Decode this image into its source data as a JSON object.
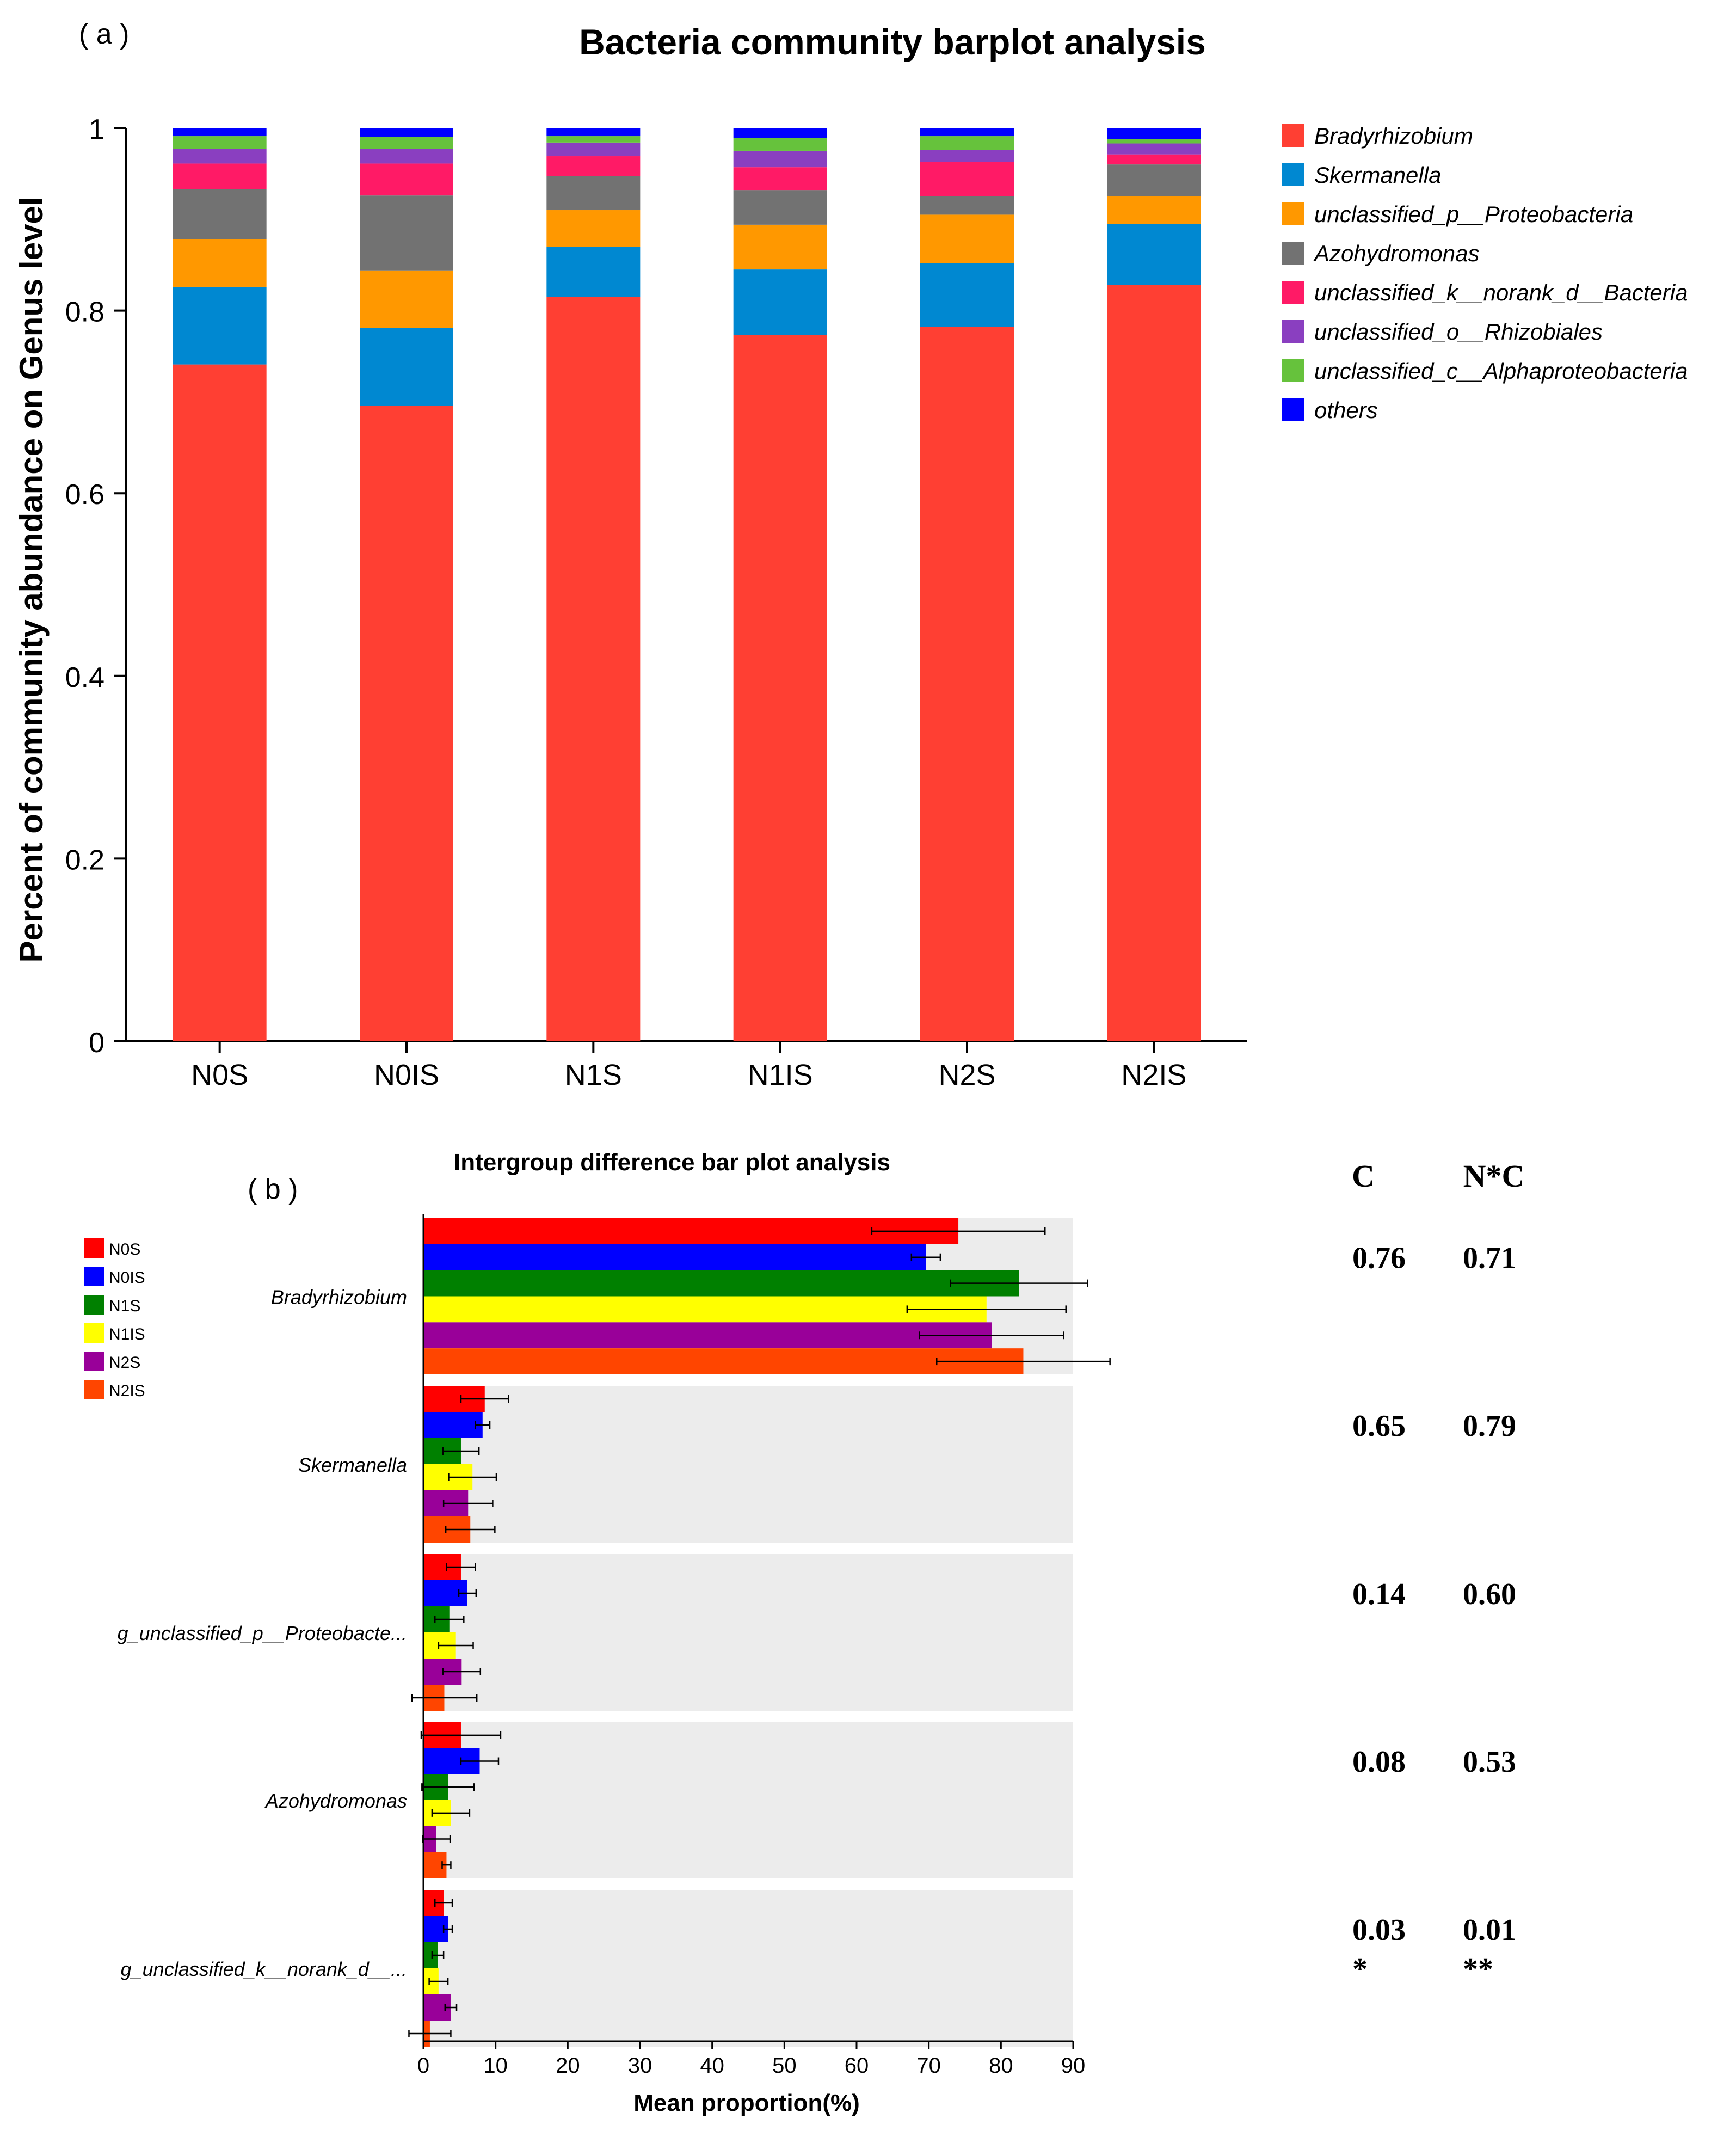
{
  "chart_data": [
    {
      "panel_label": "( a )",
      "type": "bar",
      "stacked": true,
      "title": "Bacteria community barplot analysis",
      "xlabel": "",
      "ylabel": "Percent of community abundance on Genus level",
      "ylim": [
        0,
        1
      ],
      "yticks": [
        "0",
        "0.2",
        "0.4",
        "0.6",
        "0.8",
        "1"
      ],
      "yticks_values": [
        0,
        0.2,
        0.4,
        0.6,
        0.8,
        1
      ],
      "legend_position": "right",
      "categories": [
        "N0S",
        "N0IS",
        "N1S",
        "N1IS",
        "N2S",
        "N2IS"
      ],
      "series": [
        {
          "name": "Bradyrhizobium",
          "color": "#ff3f33",
          "values": [
            0.741,
            0.696,
            0.815,
            0.773,
            0.782,
            0.828
          ]
        },
        {
          "name": "Skermanella",
          "color": "#0088d1",
          "values": [
            0.085,
            0.085,
            0.055,
            0.072,
            0.07,
            0.067
          ]
        },
        {
          "name": "unclassified_p__Proteobacteria",
          "color": "#ff9800",
          "values": [
            0.052,
            0.063,
            0.04,
            0.049,
            0.053,
            0.03
          ]
        },
        {
          "name": "Azohydromonas",
          "color": "#727272",
          "values": [
            0.055,
            0.082,
            0.037,
            0.038,
            0.02,
            0.035
          ]
        },
        {
          "name": "unclassified_k__norank_d__Bacteria",
          "color": "#ff1a66",
          "values": [
            0.028,
            0.035,
            0.022,
            0.025,
            0.038,
            0.011
          ]
        },
        {
          "name": "unclassified_o__Rhizobiales",
          "color": "#8a3fc0",
          "values": [
            0.016,
            0.016,
            0.015,
            0.018,
            0.013,
            0.012
          ]
        },
        {
          "name": "unclassified_c__Alphaproteobacteria",
          "color": "#66c23c",
          "values": [
            0.014,
            0.013,
            0.007,
            0.014,
            0.015,
            0.005
          ]
        },
        {
          "name": "others",
          "color": "#0000ff",
          "values": [
            0.009,
            0.01,
            0.009,
            0.011,
            0.009,
            0.012
          ]
        }
      ]
    },
    {
      "panel_label": "( b )",
      "type": "bar",
      "orientation": "horizontal",
      "title": "Intergroup difference bar plot analysis",
      "xlabel": "Mean proportion(%)",
      "ylabel": "",
      "xlim": [
        0,
        90
      ],
      "xticks": [
        "0",
        "10",
        "20",
        "30",
        "40",
        "50",
        "60",
        "70",
        "80",
        "90"
      ],
      "xticks_values": [
        0,
        10,
        20,
        30,
        40,
        50,
        60,
        70,
        80,
        90
      ],
      "legend_position": "top-left",
      "groups": [
        {
          "name": "N0S",
          "color": "#ff0000"
        },
        {
          "name": "N0IS",
          "color": "#0000ff"
        },
        {
          "name": "N1S",
          "color": "#008000"
        },
        {
          "name": "N1IS",
          "color": "#ffff00"
        },
        {
          "name": "N2S",
          "color": "#990099"
        },
        {
          "name": "N2IS",
          "color": "#ff4500"
        }
      ],
      "categories": [
        {
          "label": "Bradyrhizobium",
          "means": [
            74.1,
            69.6,
            82.5,
            78.0,
            78.7,
            83.1
          ],
          "errors": [
            12,
            2,
            9.5,
            11,
            10,
            12
          ]
        },
        {
          "label": "Skermanella",
          "means": [
            8.5,
            8.2,
            5.2,
            6.8,
            6.2,
            6.5
          ],
          "errors": [
            3.3,
            1,
            2.5,
            3.3,
            3.4,
            3.4
          ]
        },
        {
          "label": "g_unclassified_p__Proteobacte...",
          "means": [
            5.2,
            6.1,
            3.6,
            4.5,
            5.3,
            2.9
          ],
          "errors": [
            2,
            1.2,
            2,
            2.4,
            2.6,
            4.5
          ]
        },
        {
          "label": "Azohydromonas",
          "means": [
            5.2,
            7.8,
            3.4,
            3.8,
            1.8,
            3.2
          ],
          "errors": [
            5.5,
            2.6,
            3.6,
            2.6,
            1.9,
            0.6
          ]
        },
        {
          "label": "g_unclassified_k__norank_d__...",
          "means": [
            2.8,
            3.4,
            2.0,
            2.1,
            3.8,
            0.9
          ],
          "errors": [
            1.2,
            0.6,
            0.8,
            1.3,
            0.8,
            2.9
          ]
        }
      ],
      "pvalue_headers": {
        "c": "C",
        "nc": "N*C"
      },
      "pvalues": [
        {
          "c": "0.76",
          "nc": "0.71",
          "c_sig": "",
          "nc_sig": ""
        },
        {
          "c": "0.65",
          "nc": "0.79",
          "c_sig": "",
          "nc_sig": ""
        },
        {
          "c": "0.14",
          "nc": "0.60",
          "c_sig": "",
          "nc_sig": ""
        },
        {
          "c": "0.08",
          "nc": "0.53",
          "c_sig": "",
          "nc_sig": ""
        },
        {
          "c": "0.03",
          "nc": "0.01",
          "c_sig": "*",
          "nc_sig": "**"
        }
      ]
    }
  ]
}
